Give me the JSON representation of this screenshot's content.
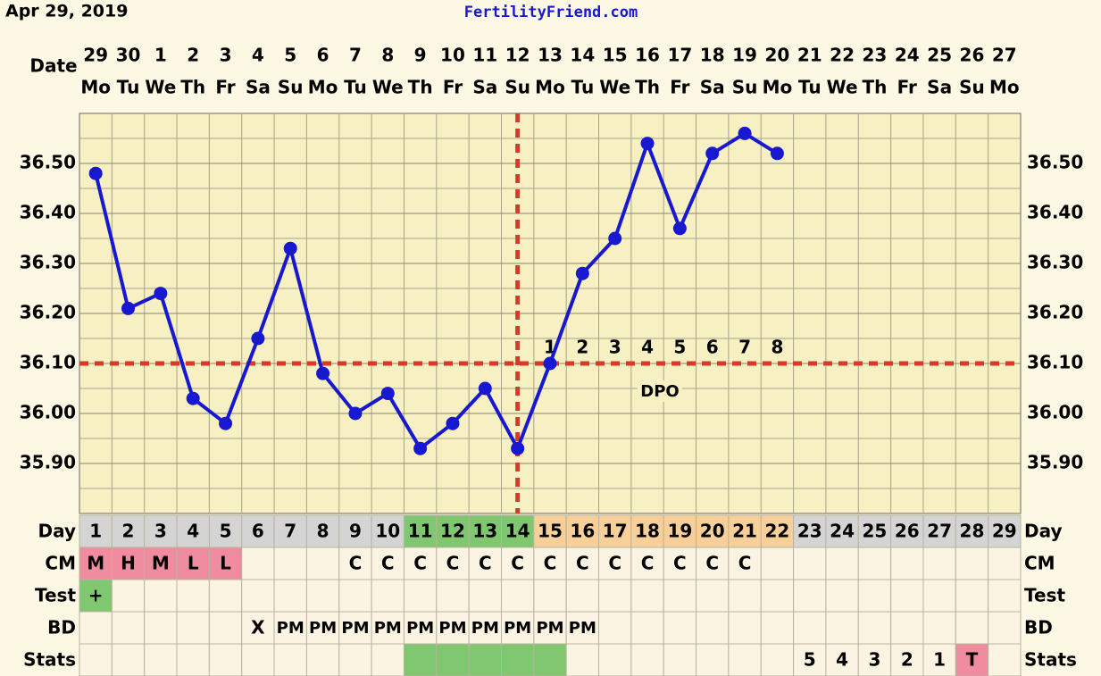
{
  "header": {
    "date": "Apr 29, 2019",
    "site": "FertilityFriend.com"
  },
  "chart_data": {
    "type": "line",
    "date_label": "Date",
    "categories": [
      "29",
      "30",
      "1",
      "2",
      "3",
      "4",
      "5",
      "6",
      "7",
      "8",
      "9",
      "10",
      "11",
      "12",
      "13",
      "14",
      "15",
      "16",
      "17",
      "18",
      "19",
      "20",
      "21",
      "22",
      "23",
      "24",
      "25",
      "26",
      "27"
    ],
    "weekdays": [
      "Mo",
      "Tu",
      "We",
      "Th",
      "Fr",
      "Sa",
      "Su",
      "Mo",
      "Tu",
      "We",
      "Th",
      "Fr",
      "Sa",
      "Su",
      "Mo",
      "Tu",
      "We",
      "Th",
      "Fr",
      "Sa",
      "Su",
      "Mo",
      "Tu",
      "We",
      "Th",
      "Fr",
      "Sa",
      "Su",
      "Mo"
    ],
    "values": [
      36.48,
      36.21,
      36.24,
      36.03,
      35.98,
      36.15,
      36.33,
      36.08,
      36.0,
      36.04,
      35.93,
      35.98,
      36.05,
      35.93,
      36.1,
      36.28,
      36.35,
      36.54,
      36.37,
      36.52,
      36.56,
      36.52,
      null,
      null,
      null,
      null,
      null,
      null,
      null
    ],
    "color": "#1818d0",
    "ylim": [
      35.8,
      36.6
    ],
    "yticks": [
      {
        "value": 35.9,
        "label": "35.90"
      },
      {
        "value": 36.0,
        "label": "36.00"
      },
      {
        "value": 36.1,
        "label": "36.10"
      },
      {
        "value": 36.2,
        "label": "36.20"
      },
      {
        "value": 36.3,
        "label": "36.30"
      },
      {
        "value": 36.4,
        "label": "36.40"
      },
      {
        "value": 36.5,
        "label": "36.50"
      }
    ],
    "grid": true,
    "coverline": 36.1,
    "ovulation_day": 14,
    "marker_color": "#d83a2a",
    "dpo": [
      null,
      null,
      null,
      null,
      null,
      null,
      null,
      null,
      null,
      null,
      null,
      null,
      null,
      null,
      1,
      2,
      3,
      4,
      5,
      6,
      7,
      8,
      null,
      null,
      null,
      null,
      null,
      null,
      null
    ],
    "dpo_label": "DPO"
  },
  "table": {
    "rows": [
      {
        "label": "Day",
        "cells": [
          1,
          2,
          3,
          4,
          5,
          6,
          7,
          8,
          9,
          10,
          11,
          12,
          13,
          14,
          15,
          16,
          17,
          18,
          19,
          20,
          21,
          22,
          23,
          24,
          25,
          26,
          27,
          28,
          29
        ],
        "colors": [
          "#d4d4d4",
          "#d4d4d4",
          "#d4d4d4",
          "#d4d4d4",
          "#d4d4d4",
          "#d4d4d4",
          "#d4d4d4",
          "#d4d4d4",
          "#d4d4d4",
          "#d4d4d4",
          "#80c870",
          "#80c870",
          "#80c870",
          "#80c870",
          "#f8cf98",
          "#f8cf98",
          "#f8cf98",
          "#f8cf98",
          "#f8cf98",
          "#f8cf98",
          "#f8cf98",
          "#f8cf98",
          "#d4d4d4",
          "#d4d4d4",
          "#d4d4d4",
          "#d4d4d4",
          "#d4d4d4",
          "#d4d4d4",
          "#d4d4d4"
        ]
      },
      {
        "label": "CM",
        "cells": [
          "M",
          "H",
          "M",
          "L",
          "L",
          null,
          null,
          null,
          "C",
          "C",
          "C",
          "C",
          "C",
          "C",
          "C",
          "C",
          "C",
          "C",
          "C",
          "C",
          "C",
          null,
          null,
          null,
          null,
          null,
          null,
          null,
          null
        ],
        "colors": [
          "#f08ca0",
          "#f08ca0",
          "#f08ca0",
          "#f08ca0",
          "#f08ca0",
          null,
          null,
          null,
          null,
          null,
          null,
          null,
          null,
          null,
          null,
          null,
          null,
          null,
          null,
          null,
          null,
          null,
          null,
          null,
          null,
          null,
          null,
          null,
          null
        ]
      },
      {
        "label": "Test",
        "cells": [
          "+",
          null,
          null,
          null,
          null,
          null,
          null,
          null,
          null,
          null,
          null,
          null,
          null,
          null,
          null,
          null,
          null,
          null,
          null,
          null,
          null,
          null,
          null,
          null,
          null,
          null,
          null,
          null,
          null
        ],
        "colors": [
          "#80c870",
          null,
          null,
          null,
          null,
          null,
          null,
          null,
          null,
          null,
          null,
          null,
          null,
          null,
          null,
          null,
          null,
          null,
          null,
          null,
          null,
          null,
          null,
          null,
          null,
          null,
          null,
          null,
          null
        ]
      },
      {
        "label": "BD",
        "cells": [
          null,
          null,
          null,
          null,
          null,
          "X",
          "PM",
          "PM",
          "PM",
          "PM",
          "PM",
          "PM",
          "PM",
          "PM",
          "PM",
          "PM",
          null,
          null,
          null,
          null,
          null,
          null,
          null,
          null,
          null,
          null,
          null,
          null,
          null
        ],
        "colors": [
          null,
          null,
          null,
          null,
          null,
          null,
          null,
          null,
          null,
          null,
          null,
          null,
          null,
          null,
          null,
          null,
          null,
          null,
          null,
          null,
          null,
          null,
          null,
          null,
          null,
          null,
          null,
          null,
          null
        ]
      },
      {
        "label": "Stats",
        "cells": [
          null,
          null,
          null,
          null,
          null,
          null,
          null,
          null,
          null,
          null,
          null,
          null,
          null,
          null,
          null,
          null,
          null,
          null,
          null,
          null,
          null,
          null,
          5,
          4,
          3,
          2,
          1,
          "T",
          null
        ],
        "colors": [
          null,
          null,
          null,
          null,
          null,
          null,
          null,
          null,
          null,
          null,
          "#80c870",
          "#80c870",
          "#80c870",
          "#80c870",
          "#80c870",
          null,
          null,
          null,
          null,
          null,
          null,
          null,
          null,
          null,
          null,
          null,
          null,
          "#f08ca0",
          null
        ]
      }
    ]
  }
}
